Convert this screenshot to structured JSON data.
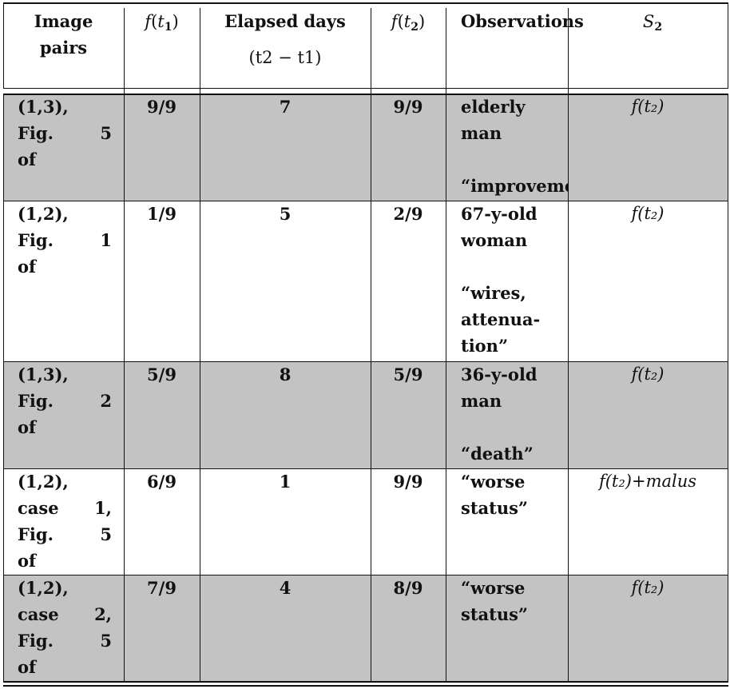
{
  "header": {
    "col1": [
      "Image",
      "pairs"
    ],
    "col2": {
      "f": "f",
      "arg": "t",
      "sub": "1"
    },
    "col3": [
      "Elapsed days",
      "(t2 − t1)"
    ],
    "col4": {
      "f": "f",
      "arg": "t",
      "sub": "2"
    },
    "col5": "Observations",
    "col6": {
      "s": "S",
      "sub": "2"
    }
  },
  "rows": [
    {
      "pair": [
        "(1,3),",
        "Fig.",
        "5",
        "of"
      ],
      "f1": "9/9",
      "days": "7",
      "f2": "9/9",
      "obs": [
        "elderly",
        "man",
        "",
        "“improvement”"
      ],
      "s2": "f(t₂)"
    },
    {
      "pair": [
        "(1,2),",
        "Fig.",
        "1",
        "of"
      ],
      "f1": "1/9",
      "days": "5",
      "f2": "2/9",
      "obs": [
        "67-y-old",
        "woman",
        "",
        "“wires,",
        "attenua-",
        "tion”"
      ],
      "s2": "f(t₂)"
    },
    {
      "pair": [
        "(1,3),",
        "Fig.",
        "2",
        "of"
      ],
      "f1": "5/9",
      "days": "8",
      "f2": "5/9",
      "obs": [
        "36-y-old",
        "man",
        "",
        "“death”"
      ],
      "s2": "f(t₂)"
    },
    {
      "pair": [
        "(1,2),",
        "case",
        "1,",
        "Fig.",
        "5",
        "of"
      ],
      "f1": "6/9",
      "days": "1",
      "f2": "9/9",
      "obs": [
        "“worse",
        "status”"
      ],
      "s2": "f(t₂)+malus"
    },
    {
      "pair": [
        "(1,2),",
        "case",
        "2,",
        "Fig.",
        "5",
        "of"
      ],
      "f1": "7/9",
      "days": "4",
      "f2": "8/9",
      "obs": [
        "“worse",
        "status”"
      ],
      "s2": "f(t₂)"
    }
  ]
}
